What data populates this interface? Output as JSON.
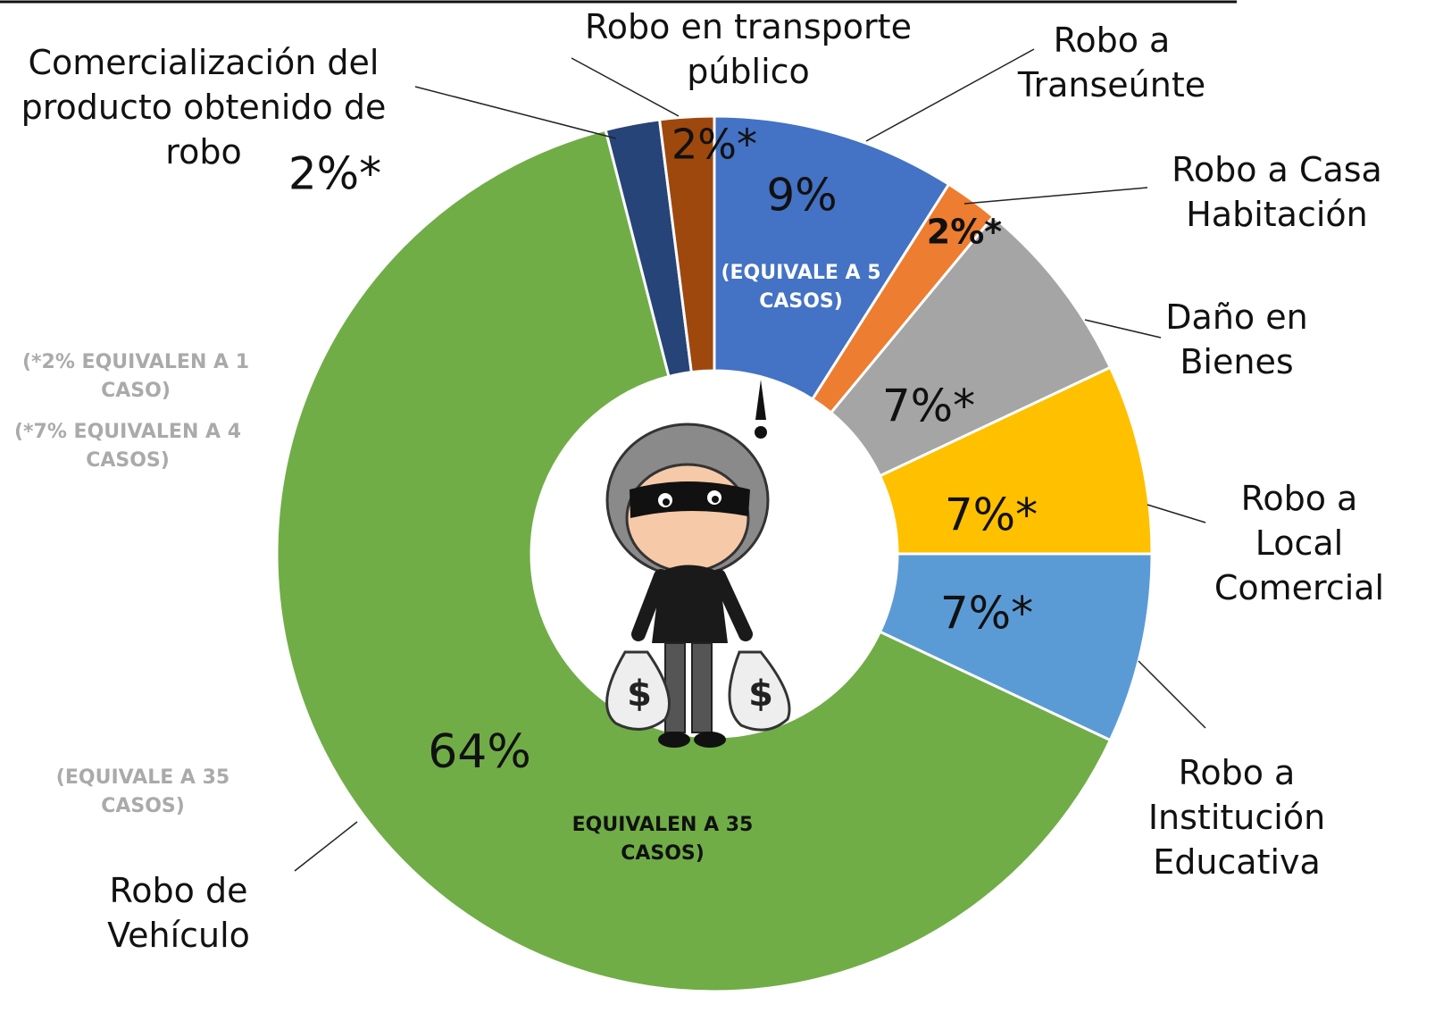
{
  "chart_data": {
    "type": "donut",
    "categories": [
      "Robo a Transeúnte",
      "Robo a Casa Habitación",
      "Daño en Bienes",
      "Robo a Local Comercial",
      "Robo a Institución Educativa",
      "Robo de Vehículo",
      "Comercialización del producto obtenido de robo",
      "Robo en transporte público"
    ],
    "values": [
      9,
      2,
      7,
      7,
      7,
      64,
      2,
      2
    ],
    "value_labels": [
      "9%",
      "2%*",
      "7%*",
      "7%*",
      "7%*",
      "64%",
      "2%*",
      "2%*"
    ],
    "colors": [
      "#4472c4",
      "#ed7d31",
      "#a5a5a5",
      "#ffc000",
      "#5b9bd5",
      "#70ad47",
      "#264478",
      "#9e480e"
    ],
    "annotations": [
      "(EQUIVALE A 5 CASOS)",
      "(*2% EQUIVALEN A 1 CASO)",
      "(*7% EQUIVALEN A 4 CASOS)",
      "(EQUIVALE A 35 CASOS)",
      "EQUIVALEN A 35 CASOS)"
    ]
  }
}
